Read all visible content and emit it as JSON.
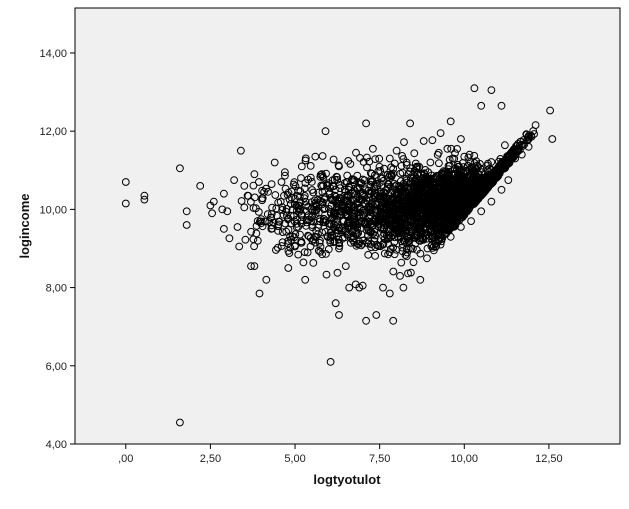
{
  "chart_data": {
    "type": "scatter",
    "title": "",
    "xlabel": "logtyotulot",
    "ylabel": "logincome",
    "xlim": [
      -1.5,
      14.6
    ],
    "ylim": [
      4.0,
      15.15
    ],
    "x_ticks": [
      {
        "value": 0,
        "label": ",00"
      },
      {
        "value": 2.5,
        "label": "2,50"
      },
      {
        "value": 5,
        "label": "5,00"
      },
      {
        "value": 7.5,
        "label": "7,50"
      },
      {
        "value": 10,
        "label": "10,00"
      },
      {
        "value": 12.5,
        "label": "12,50"
      }
    ],
    "y_ticks": [
      {
        "value": 4,
        "label": "4,00"
      },
      {
        "value": 6,
        "label": "6,00"
      },
      {
        "value": 8,
        "label": "8,00"
      },
      {
        "value": 10,
        "label": "10,00"
      },
      {
        "value": 12,
        "label": "12,00"
      },
      {
        "value": 14,
        "label": "14,00"
      }
    ],
    "grid": false,
    "legend": "none",
    "colors": {
      "plot_background": "#f0f0f0",
      "marker": "#000000",
      "frame": "#000000"
    },
    "marker": "open-circle",
    "points": [
      [
        0.0,
        10.7
      ],
      [
        0.0,
        10.15
      ],
      [
        0.55,
        10.35
      ],
      [
        0.55,
        10.25
      ],
      [
        1.6,
        11.05
      ],
      [
        1.8,
        9.95
      ],
      [
        1.8,
        9.6
      ],
      [
        1.6,
        4.55
      ],
      [
        2.2,
        10.6
      ],
      [
        2.5,
        10.1
      ],
      [
        2.6,
        10.2
      ],
      [
        2.55,
        9.9
      ],
      [
        2.9,
        10.4
      ],
      [
        2.85,
        10.0
      ],
      [
        3.0,
        9.95
      ],
      [
        2.9,
        9.5
      ],
      [
        3.3,
        9.55
      ],
      [
        3.4,
        11.5
      ],
      [
        3.35,
        9.05
      ],
      [
        3.5,
        10.05
      ],
      [
        3.7,
        8.55
      ],
      [
        3.8,
        8.55
      ],
      [
        3.9,
        9.2
      ],
      [
        4.0,
        9.75
      ],
      [
        3.95,
        7.85
      ],
      [
        4.15,
        8.2
      ],
      [
        4.3,
        9.5
      ],
      [
        4.4,
        11.2
      ],
      [
        4.6,
        10.7
      ],
      [
        4.8,
        8.5
      ],
      [
        5.0,
        9.05
      ],
      [
        5.1,
        10.1
      ],
      [
        5.3,
        8.2
      ],
      [
        5.5,
        9.6
      ],
      [
        5.9,
        12.0
      ],
      [
        6.05,
        6.1
      ],
      [
        6.2,
        7.6
      ],
      [
        6.3,
        7.3
      ],
      [
        6.6,
        8.0
      ],
      [
        6.9,
        8.0
      ],
      [
        7.0,
        8.05
      ],
      [
        7.1,
        7.15
      ],
      [
        7.1,
        12.2
      ],
      [
        7.4,
        7.3
      ],
      [
        7.6,
        8.0
      ],
      [
        7.8,
        7.85
      ],
      [
        7.9,
        7.15
      ],
      [
        8.0,
        11.5
      ],
      [
        8.1,
        8.3
      ],
      [
        8.2,
        8.0
      ],
      [
        8.4,
        12.2
      ],
      [
        8.7,
        8.2
      ],
      [
        8.8,
        11.75
      ],
      [
        9.3,
        11.95
      ],
      [
        9.6,
        12.25
      ],
      [
        10.3,
        13.1
      ],
      [
        10.5,
        12.65
      ],
      [
        10.8,
        13.05
      ],
      [
        11.1,
        12.65
      ],
      [
        12.6,
        11.8
      ],
      [
        11.9,
        11.6
      ],
      [
        11.7,
        11.4
      ],
      [
        11.5,
        11.3
      ],
      [
        11.2,
        11.1
      ],
      [
        9.9,
        11.8
      ],
      [
        10.0,
        11.35
      ],
      [
        9.5,
        11.55
      ],
      [
        9.0,
        11.2
      ],
      [
        8.9,
        8.75
      ],
      [
        9.1,
        8.95
      ],
      [
        9.3,
        9.1
      ],
      [
        9.6,
        9.3
      ],
      [
        9.9,
        9.55
      ],
      [
        10.2,
        9.7
      ],
      [
        10.5,
        9.95
      ],
      [
        10.8,
        10.2
      ],
      [
        11.1,
        10.5
      ],
      [
        11.3,
        10.75
      ],
      [
        8.5,
        8.65
      ],
      [
        8.3,
        8.8
      ],
      [
        6.5,
        8.55
      ],
      [
        6.3,
        9.0
      ],
      [
        5.8,
        8.85
      ],
      [
        5.6,
        9.15
      ],
      [
        4.5,
        9.45
      ],
      [
        4.2,
        10.45
      ],
      [
        4.7,
        10.95
      ],
      [
        5.2,
        11.1
      ],
      [
        5.6,
        11.35
      ],
      [
        6.3,
        11.1
      ],
      [
        6.8,
        11.45
      ],
      [
        7.3,
        11.55
      ],
      [
        7.8,
        11.3
      ],
      [
        8.3,
        11.2
      ],
      [
        3.8,
        10.9
      ],
      [
        3.6,
        10.35
      ],
      [
        3.2,
        10.75
      ],
      [
        3.5,
        10.6
      ],
      [
        4.9,
        10.3
      ],
      [
        5.4,
        9.85
      ]
    ],
    "clusters": [
      {
        "cx": 9.3,
        "cy": 10.05,
        "sx": 0.85,
        "sy": 0.5,
        "n": 1200
      },
      {
        "cx": 10.4,
        "cy": 10.45,
        "sx": 0.6,
        "sy": 0.35,
        "n": 700
      },
      {
        "cx": 7.8,
        "cy": 9.95,
        "sx": 0.9,
        "sy": 0.55,
        "n": 500
      },
      {
        "cx": 6.2,
        "cy": 9.95,
        "sx": 0.8,
        "sy": 0.55,
        "n": 260
      },
      {
        "cx": 4.6,
        "cy": 9.9,
        "sx": 0.6,
        "sy": 0.5,
        "n": 110
      }
    ]
  }
}
